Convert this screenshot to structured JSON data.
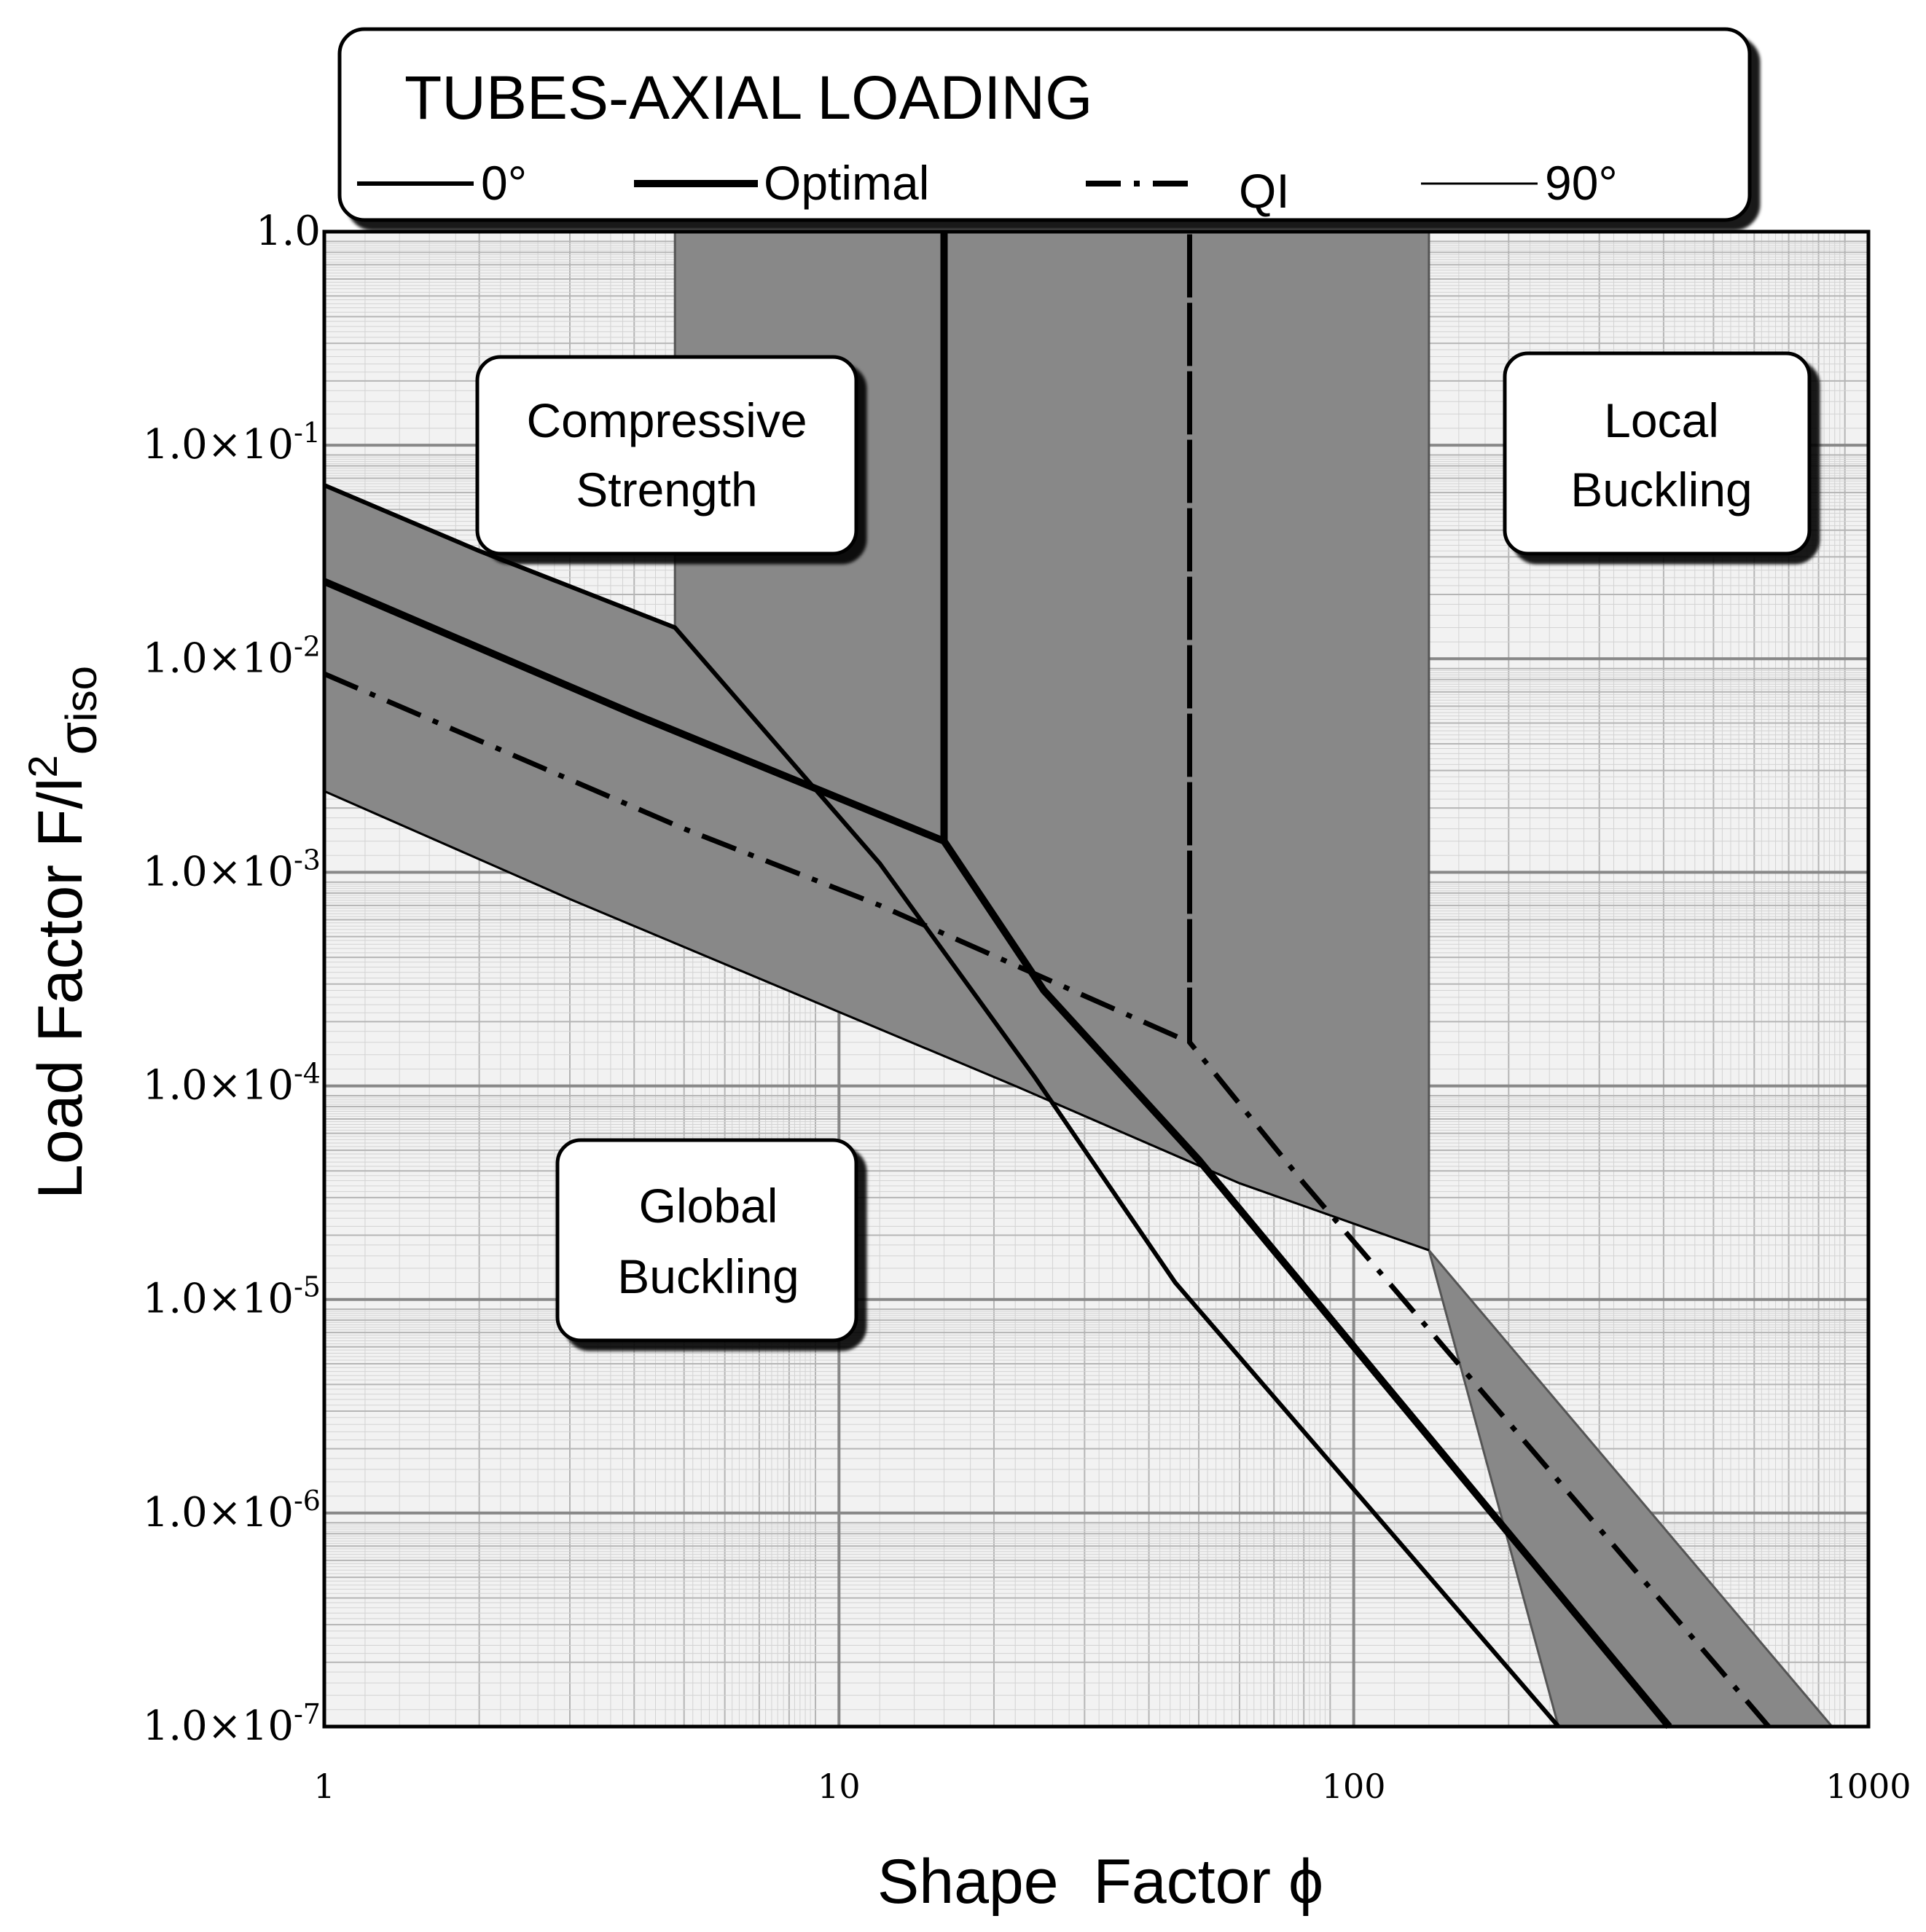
{
  "chart_data": {
    "type": "line",
    "title": "TUBES-AXIAL LOADING",
    "xlabel": "Shape  Factor ϕ",
    "ylabel_main": "Load Factor F/l",
    "ylabel_sup": "2",
    "ylabel_sub_sigma": "σ",
    "ylabel_sub_iso": "iso",
    "x_scale": "log",
    "y_scale": "log",
    "xlim": [
      1,
      1000
    ],
    "ylim": [
      1e-07,
      1.0
    ],
    "grid": true,
    "x_ticks": [
      {
        "value": 1,
        "label": "1"
      },
      {
        "value": 10,
        "label": "10"
      },
      {
        "value": 100,
        "label": "100"
      },
      {
        "value": 1000,
        "label": "1000"
      }
    ],
    "y_ticks": [
      {
        "value": 1.0,
        "label": "1.0",
        "exp": ""
      },
      {
        "value": 0.1,
        "label": "1.0×10",
        "exp": "-1"
      },
      {
        "value": 0.01,
        "label": "1.0×10",
        "exp": "-2"
      },
      {
        "value": 0.001,
        "label": "1.0×10",
        "exp": "-3"
      },
      {
        "value": 0.0001,
        "label": "1.0×10",
        "exp": "-4"
      },
      {
        "value": 1e-05,
        "label": "1.0×10",
        "exp": "-5"
      },
      {
        "value": 1e-06,
        "label": "1.0×10",
        "exp": "-6"
      },
      {
        "value": 1e-07,
        "label": "1.0×10",
        "exp": "-7"
      }
    ],
    "legend": {
      "placement": "top",
      "entries": [
        {
          "name": "0°",
          "style": "solid-medium"
        },
        {
          "name": "Optimal",
          "style": "solid-thick"
        },
        {
          "name": "QI",
          "style": "dash-dot"
        },
        {
          "name": "90°",
          "style": "solid-thin"
        }
      ]
    },
    "regions": [
      {
        "name": "Compressive Strength",
        "lines": [
          "Compressive",
          "Strength"
        ]
      },
      {
        "name": "Local Buckling",
        "lines": [
          "Local",
          "Buckling"
        ]
      },
      {
        "name": "Global Buckling",
        "lines": [
          "Global",
          "Buckling"
        ]
      }
    ],
    "shaded_band": {
      "upper": [
        [
          1,
          0.065
        ],
        [
          2,
          0.032
        ],
        [
          4.8,
          0.014
        ],
        [
          4.8,
          1.0
        ],
        [
          140,
          1.0
        ],
        [
          140,
          1.7e-05
        ],
        [
          850,
          1e-07
        ]
      ],
      "lower": [
        [
          1,
          0.0024
        ],
        [
          3,
          0.00075
        ],
        [
          22,
          0.0001
        ],
        [
          60,
          3.5e-05
        ],
        [
          140,
          1.7e-05
        ],
        [
          250,
          1e-07
        ]
      ]
    },
    "series": [
      {
        "name": "0°",
        "style": "solid-medium",
        "points": [
          [
            1,
            0.065
          ],
          [
            2,
            0.032
          ],
          [
            4.8,
            0.014
          ],
          [
            12,
            0.0011
          ],
          [
            24,
            0.00011
          ],
          [
            45,
            1.2e-05
          ],
          [
            250,
            1e-07
          ]
        ]
      },
      {
        "name": "Optimal",
        "style": "solid-thick",
        "points": [
          [
            1,
            0.023
          ],
          [
            4,
            0.0055
          ],
          [
            16,
            0.0014
          ],
          [
            16,
            1.0
          ],
          [
            16,
            0.0014
          ],
          [
            25,
            0.00028
          ],
          [
            50,
            4.5e-05
          ],
          [
            410,
            1e-07
          ]
        ]
      },
      {
        "name": "QI",
        "style": "dash-dot",
        "points": [
          [
            1,
            0.0085
          ],
          [
            5,
            0.0016
          ],
          [
            12,
            0.0007
          ],
          [
            48,
            0.00016
          ],
          [
            48,
            1.0
          ],
          [
            48,
            0.00016
          ],
          [
            80,
            3.5e-05
          ],
          [
            640,
            1e-07
          ]
        ]
      },
      {
        "name": "90°",
        "style": "solid-thin",
        "points": [
          [
            1,
            0.0024
          ],
          [
            3,
            0.00075
          ],
          [
            22,
            0.0001
          ],
          [
            60,
            3.5e-05
          ],
          [
            140,
            1.7e-05
          ]
        ]
      }
    ]
  }
}
